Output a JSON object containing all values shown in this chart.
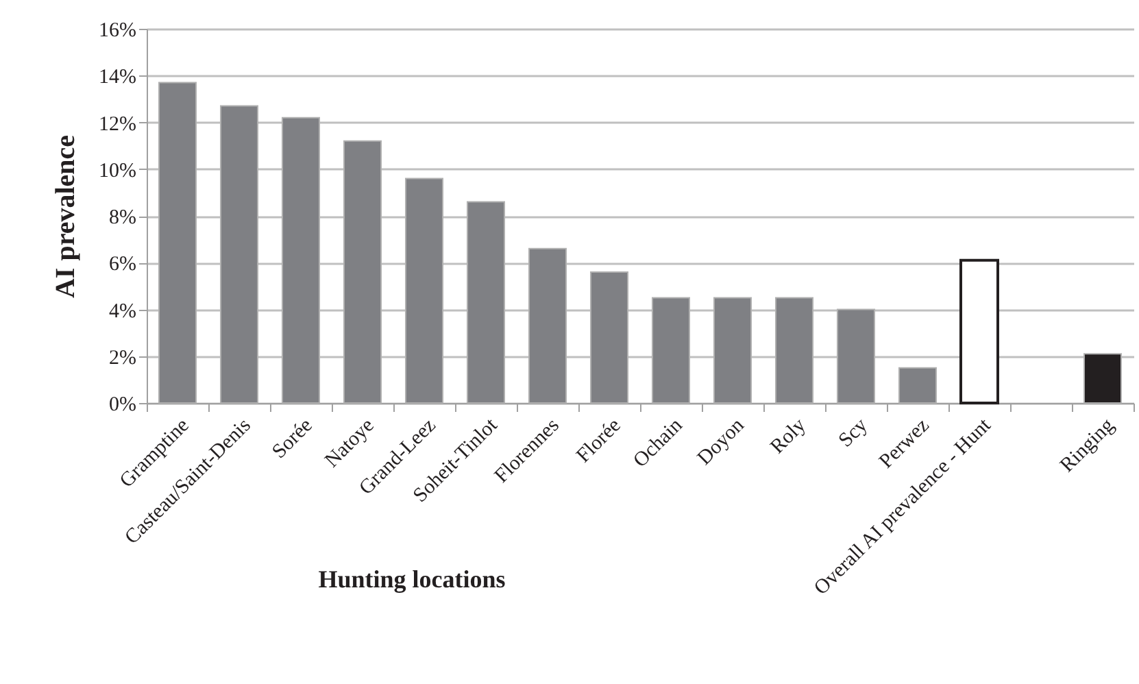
{
  "chart_data": {
    "type": "bar",
    "ylabel": "AI prevalence",
    "xlabel": "Hunting locations",
    "categories": [
      "Gramptine",
      "Casteau/Saint-Denis",
      "Sorée",
      "Natoye",
      "Grand-Leez",
      "Soheit-Tinlot",
      "Florennes",
      "Florée",
      "Ochain",
      "Doyon",
      "Roly",
      "Scy",
      "Perwez",
      "Overall AI prevalence - Hunt",
      null,
      "Ringing"
    ],
    "values": [
      13.7,
      12.7,
      12.2,
      11.2,
      9.6,
      8.6,
      6.6,
      5.6,
      4.5,
      4.5,
      4.5,
      4.0,
      1.5,
      6.1,
      null,
      2.1
    ],
    "colors": [
      "#7f8084",
      "#7f8084",
      "#7f8084",
      "#7f8084",
      "#7f8084",
      "#7f8084",
      "#7f8084",
      "#7f8084",
      "#7f8084",
      "#7f8084",
      "#7f8084",
      "#7f8084",
      "#7f8084",
      "#ffffff",
      "#ffffff",
      "#231f20"
    ],
    "ylim": [
      0,
      16
    ],
    "yticks": [
      {
        "value": 0,
        "label": "0%"
      },
      {
        "value": 2,
        "label": "2%"
      },
      {
        "value": 4,
        "label": "4%"
      },
      {
        "value": 6,
        "label": "6%"
      },
      {
        "value": 8,
        "label": "8%"
      },
      {
        "value": 10,
        "label": "10%"
      },
      {
        "value": 12,
        "label": "12%"
      },
      {
        "value": 14,
        "label": "14%"
      },
      {
        "value": 16,
        "label": "16%"
      }
    ],
    "grid": "y"
  }
}
